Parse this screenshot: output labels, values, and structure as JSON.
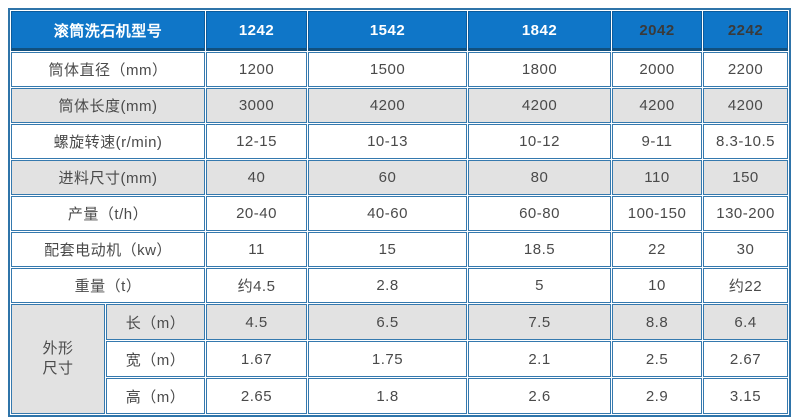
{
  "table": {
    "colors": {
      "header_bg": "#0f76c8",
      "header_divider": "#0b5b9c",
      "header_underline": "#11507f",
      "grid_border": "#3579ae",
      "outer_border": "#2f74a9",
      "shaded_row_bg": "#e2e2e2",
      "white_row_bg": "#ffffff",
      "label_text": "#4b4b4b",
      "value_text": "#4a4a4a",
      "header_text_light": "#ffffff",
      "header_text_dark": "#3a3a3a"
    },
    "header": {
      "title": "滚筒洗石机型号",
      "models": [
        {
          "label": "1242",
          "color": "#ffffff"
        },
        {
          "label": "1542",
          "color": "#ffffff"
        },
        {
          "label": "1842",
          "color": "#ffffff"
        },
        {
          "label": "2042",
          "color": "#3a3a3a"
        },
        {
          "label": "2242",
          "color": "#3a3a3a"
        }
      ]
    },
    "rows": [
      {
        "label": "筒体直径（mm）",
        "values": [
          "1200",
          "1500",
          "1800",
          "2000",
          "2200"
        ]
      },
      {
        "label": "筒体长度(mm)",
        "values": [
          "3000",
          "4200",
          "4200",
          "4200",
          "4200"
        ]
      },
      {
        "label": "螺旋转速(r/min)",
        "values": [
          "12-15",
          "10-13",
          "10-12",
          "9-11",
          "8.3-10.5"
        ]
      },
      {
        "label": "进料尺寸(mm)",
        "values": [
          "40",
          "60",
          "80",
          "110",
          "150"
        ]
      },
      {
        "label": "产量（t/h）",
        "values": [
          "20-40",
          "40-60",
          "60-80",
          "100-150",
          "130-200"
        ]
      },
      {
        "label": "配套电动机（kw）",
        "values": [
          "11",
          "15",
          "18.5",
          "22",
          "30"
        ]
      },
      {
        "label": "重量（t）",
        "values": [
          "约4.5",
          "2.8",
          "5",
          "10",
          "约22"
        ]
      }
    ],
    "dimension_group": {
      "label": "外形尺寸",
      "label_lines": [
        "外形",
        "尺寸"
      ],
      "rows": [
        {
          "label": "长（m）",
          "values": [
            "4.5",
            "6.5",
            "7.5",
            "8.8",
            "6.4"
          ]
        },
        {
          "label": "宽（m）",
          "values": [
            "1.67",
            "1.75",
            "2.1",
            "2.5",
            "2.67"
          ]
        },
        {
          "label": "高（m）",
          "values": [
            "2.65",
            "1.8",
            "2.6",
            "2.9",
            "3.15"
          ]
        }
      ]
    }
  }
}
